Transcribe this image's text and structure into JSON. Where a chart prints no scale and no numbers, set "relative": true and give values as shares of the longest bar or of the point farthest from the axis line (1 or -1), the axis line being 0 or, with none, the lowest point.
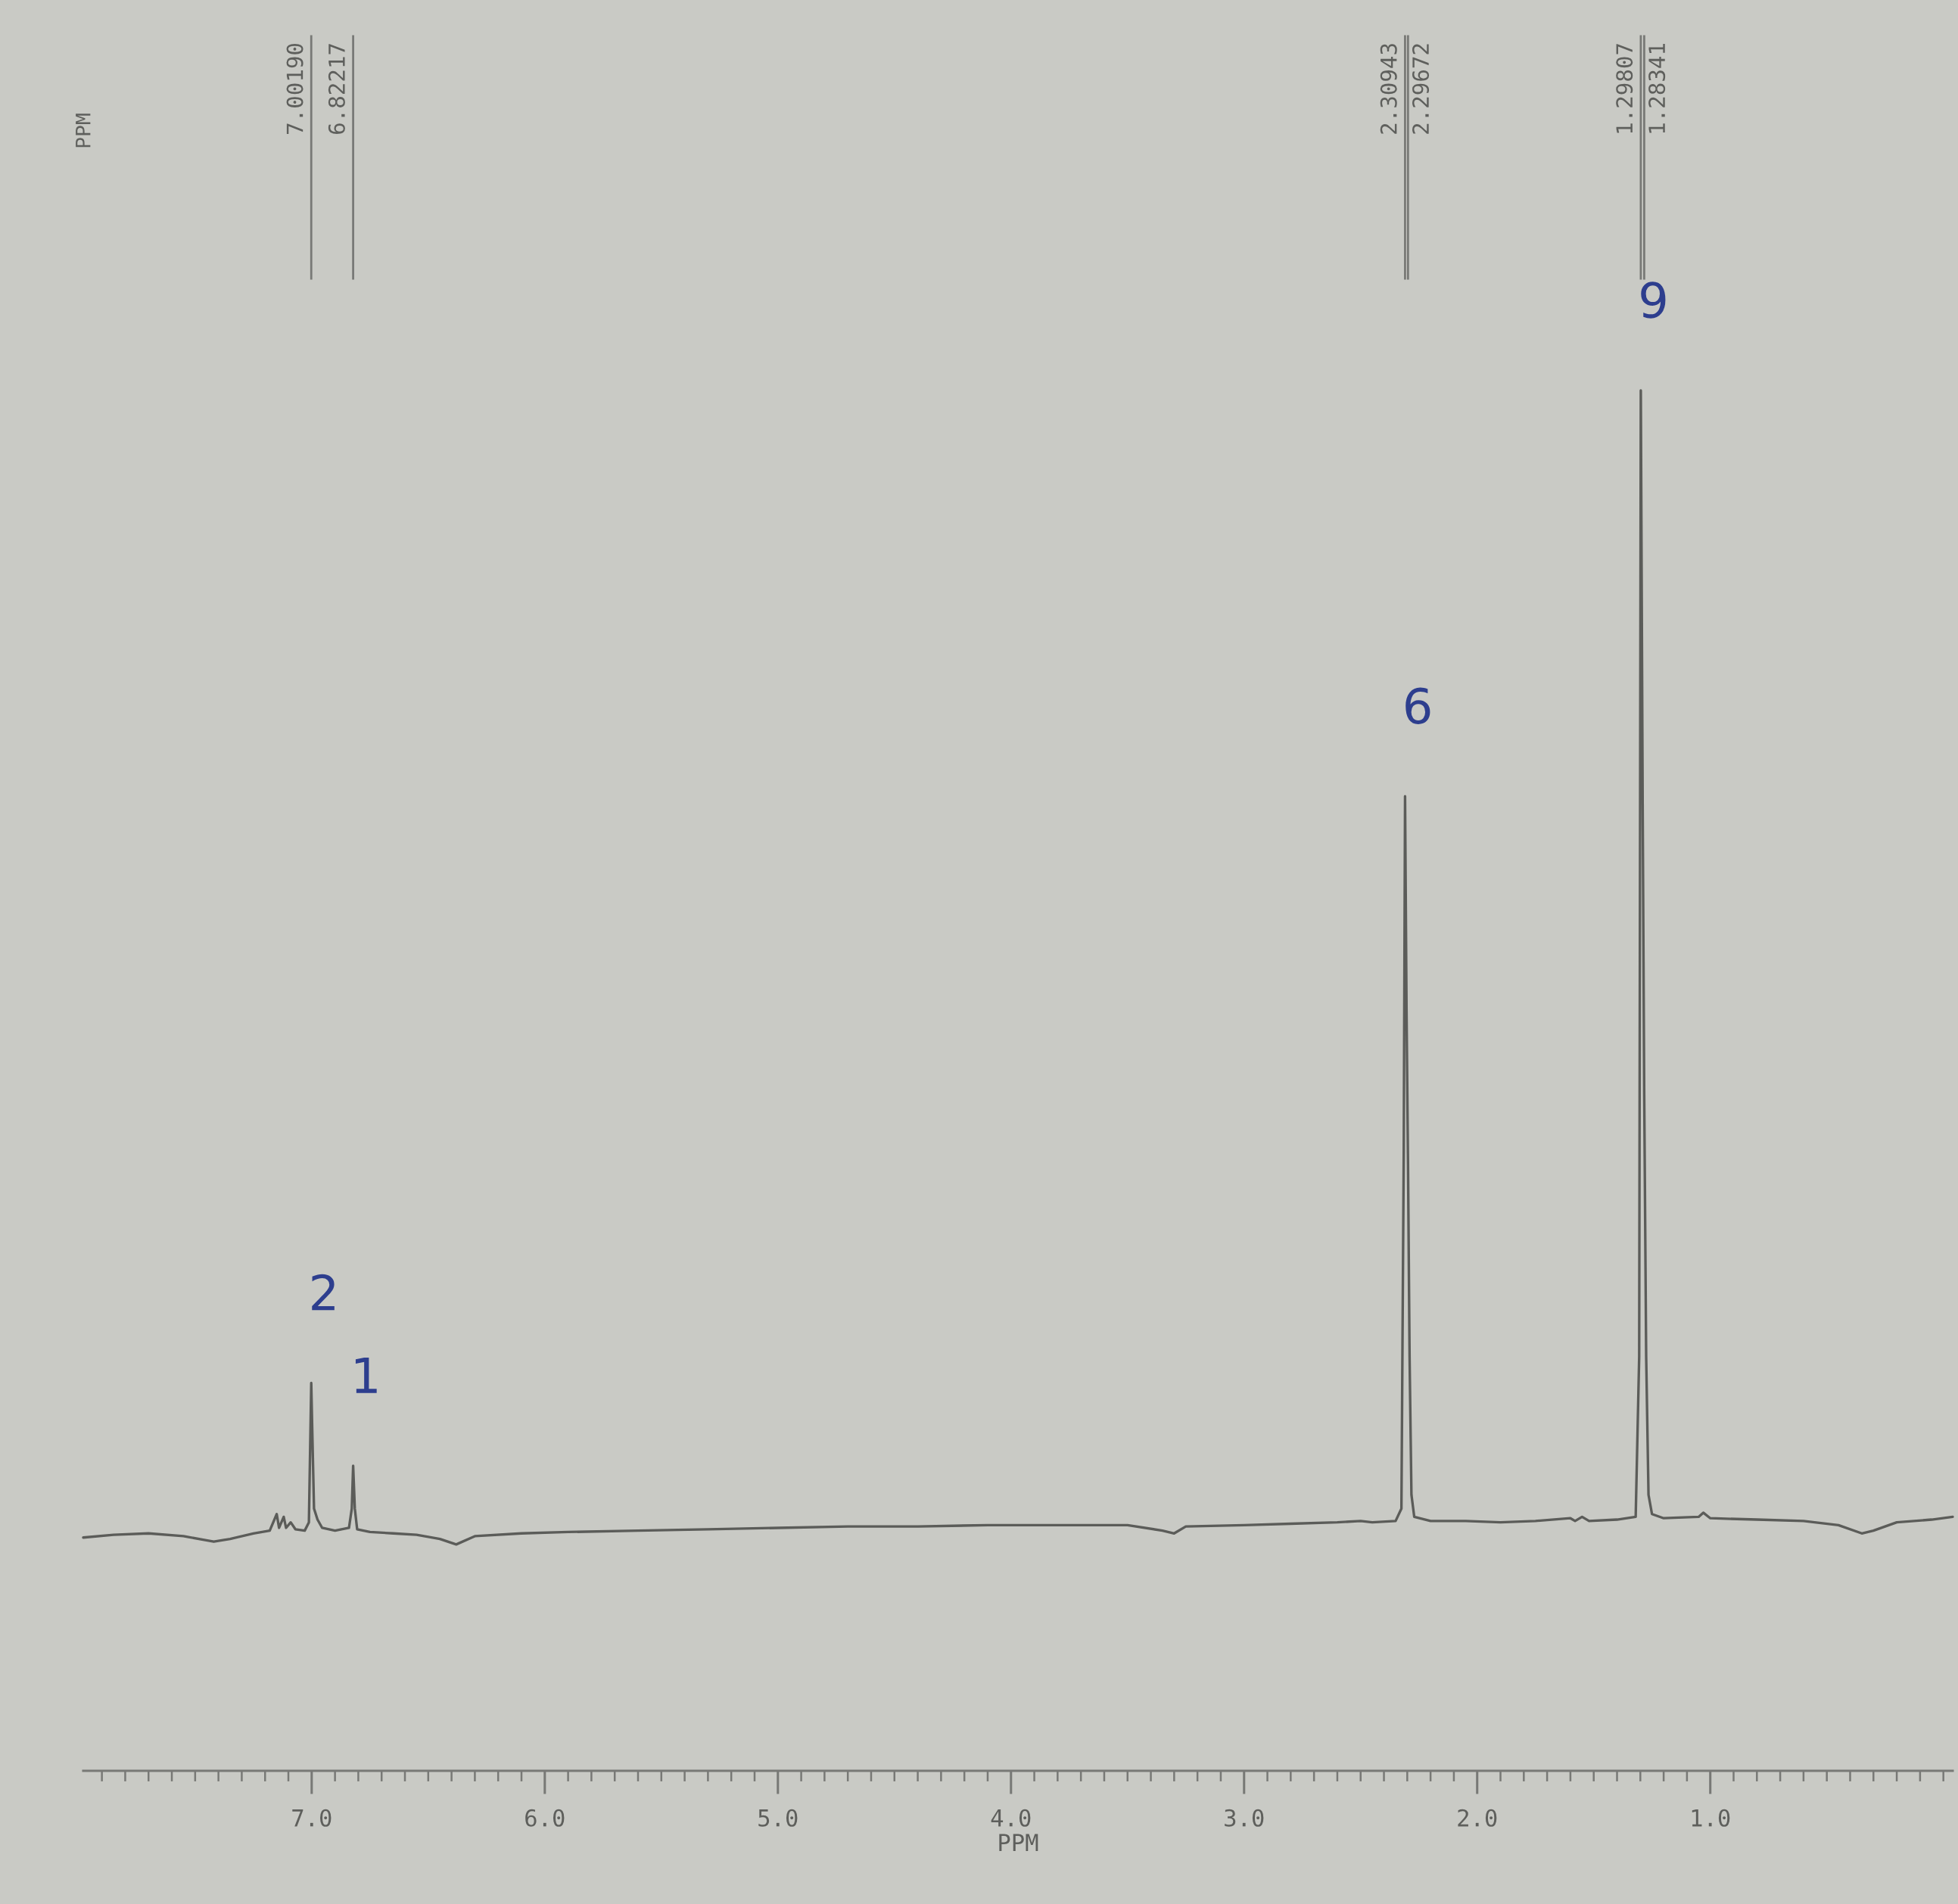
{
  "chart_data": {
    "type": "line",
    "relative": true,
    "xlabel": "PPM",
    "x": [
      7.98,
      7.85,
      7.7,
      7.55,
      7.42,
      7.35,
      7.25,
      7.18,
      7.15,
      7.14,
      7.12,
      7.11,
      7.09,
      7.07,
      7.03,
      7.012,
      7.006,
      7.0019,
      6.998,
      6.99,
      6.975,
      6.955,
      6.9,
      6.84,
      6.828,
      6.82217,
      6.815,
      6.805,
      6.75,
      6.65,
      6.55,
      6.45,
      6.38,
      6.3,
      6.1,
      5.9,
      5.6,
      5.3,
      5.0,
      4.7,
      4.4,
      4.1,
      3.8,
      3.5,
      3.35,
      3.3,
      3.25,
      3.0,
      2.8,
      2.6,
      2.5,
      2.45,
      2.35,
      2.325,
      2.315,
      2.30943,
      2.303,
      2.29672,
      2.29,
      2.282,
      2.27,
      2.2,
      2.05,
      1.9,
      1.75,
      1.6,
      1.58,
      1.55,
      1.52,
      1.4,
      1.32,
      1.305,
      1.29807,
      1.29,
      1.28341,
      1.275,
      1.265,
      1.25,
      1.2,
      1.05,
      1.03,
      1.0,
      0.8,
      0.6,
      0.45,
      0.35,
      0.3,
      0.2,
      0.05,
      -0.04
    ],
    "series": [
      {
        "color": "#5b5c59",
        "values": [
          0.169,
          0.171,
          0.172,
          0.17,
          0.166,
          0.168,
          0.172,
          0.174,
          0.186,
          0.176,
          0.184,
          0.176,
          0.18,
          0.175,
          0.174,
          0.18,
          0.24,
          0.281,
          0.25,
          0.19,
          0.182,
          0.176,
          0.174,
          0.176,
          0.19,
          0.221,
          0.19,
          0.175,
          0.173,
          0.172,
          0.171,
          0.168,
          0.164,
          0.17,
          0.172,
          0.173,
          0.174,
          0.175,
          0.176,
          0.177,
          0.177,
          0.178,
          0.178,
          0.178,
          0.174,
          0.172,
          0.177,
          0.178,
          0.179,
          0.18,
          0.181,
          0.18,
          0.181,
          0.19,
          0.45,
          0.706,
          0.55,
          0.44,
          0.3,
          0.2,
          0.184,
          0.181,
          0.181,
          0.18,
          0.181,
          0.183,
          0.181,
          0.184,
          0.181,
          0.182,
          0.184,
          0.3,
          1.0,
          0.7,
          0.49,
          0.3,
          0.2,
          0.186,
          0.183,
          0.184,
          0.187,
          0.183,
          0.182,
          0.181,
          0.178,
          0.172,
          0.174,
          0.18,
          0.182,
          0.184
        ]
      }
    ],
    "xlim": [
      7.98,
      -0.04
    ],
    "xticks": [
      {
        "value": 7.9,
        "label": null
      },
      {
        "value": 7.8,
        "label": null
      },
      {
        "value": 7.7,
        "label": null
      },
      {
        "value": 7.6,
        "label": null
      },
      {
        "value": 7.5,
        "label": null
      },
      {
        "value": 7.4,
        "label": null
      },
      {
        "value": 7.3,
        "label": null
      },
      {
        "value": 7.2,
        "label": null
      },
      {
        "value": 7.1,
        "label": null
      },
      {
        "value": 7,
        "label": "7.0"
      },
      {
        "value": 6.9,
        "label": null
      },
      {
        "value": 6.8,
        "label": null
      },
      {
        "value": 6.7,
        "label": null
      },
      {
        "value": 6.6,
        "label": null
      },
      {
        "value": 6.5,
        "label": null
      },
      {
        "value": 6.4,
        "label": null
      },
      {
        "value": 6.3,
        "label": null
      },
      {
        "value": 6.2,
        "label": null
      },
      {
        "value": 6.1,
        "label": null
      },
      {
        "value": 6,
        "label": "6.0"
      },
      {
        "value": 5.9,
        "label": null
      },
      {
        "value": 5.8,
        "label": null
      },
      {
        "value": 5.7,
        "label": null
      },
      {
        "value": 5.6,
        "label": null
      },
      {
        "value": 5.5,
        "label": null
      },
      {
        "value": 5.4,
        "label": null
      },
      {
        "value": 5.3,
        "label": null
      },
      {
        "value": 5.2,
        "label": null
      },
      {
        "value": 5.1,
        "label": null
      },
      {
        "value": 5,
        "label": "5.0"
      },
      {
        "value": 4.9,
        "label": null
      },
      {
        "value": 4.8,
        "label": null
      },
      {
        "value": 4.7,
        "label": null
      },
      {
        "value": 4.6,
        "label": null
      },
      {
        "value": 4.5,
        "label": null
      },
      {
        "value": 4.4,
        "label": null
      },
      {
        "value": 4.3,
        "label": null
      },
      {
        "value": 4.2,
        "label": null
      },
      {
        "value": 4.1,
        "label": null
      },
      {
        "value": 4,
        "label": "4.0"
      },
      {
        "value": 3.9,
        "label": null
      },
      {
        "value": 3.8,
        "label": null
      },
      {
        "value": 3.7,
        "label": null
      },
      {
        "value": 3.6,
        "label": null
      },
      {
        "value": 3.5,
        "label": null
      },
      {
        "value": 3.4,
        "label": null
      },
      {
        "value": 3.3,
        "label": null
      },
      {
        "value": 3.2,
        "label": null
      },
      {
        "value": 3.1,
        "label": null
      },
      {
        "value": 3,
        "label": "3.0"
      },
      {
        "value": 2.9,
        "label": null
      },
      {
        "value": 2.8,
        "label": null
      },
      {
        "value": 2.7,
        "label": null
      },
      {
        "value": 2.6,
        "label": null
      },
      {
        "value": 2.5,
        "label": null
      },
      {
        "value": 2.4,
        "label": null
      },
      {
        "value": 2.3,
        "label": null
      },
      {
        "value": 2.2,
        "label": null
      },
      {
        "value": 2.1,
        "label": null
      },
      {
        "value": 2,
        "label": "2.0"
      },
      {
        "value": 1.9,
        "label": null
      },
      {
        "value": 1.8,
        "label": null
      },
      {
        "value": 1.7,
        "label": null
      },
      {
        "value": 1.6,
        "label": null
      },
      {
        "value": 1.5,
        "label": null
      },
      {
        "value": 1.4,
        "label": null
      },
      {
        "value": 1.3,
        "label": null
      },
      {
        "value": 1.2,
        "label": null
      },
      {
        "value": 1.1,
        "label": null
      },
      {
        "value": 1,
        "label": "1.0"
      },
      {
        "value": 0.9,
        "label": null
      },
      {
        "value": 0.8,
        "label": null
      },
      {
        "value": 0.7,
        "label": null
      },
      {
        "value": 0.6,
        "label": null
      },
      {
        "value": 0.5,
        "label": null
      },
      {
        "value": 0.4,
        "label": null
      },
      {
        "value": 0.3,
        "label": null
      },
      {
        "value": 0.2,
        "label": null
      },
      {
        "value": 0.1,
        "label": null
      },
      {
        "value": 0.0,
        "label": null
      }
    ],
    "ref_lines": [
      {
        "axis": "x",
        "value": 7.0019,
        "label": "7.00190"
      },
      {
        "axis": "x",
        "value": 6.82217,
        "label": "6.82217"
      },
      {
        "axis": "x",
        "value": 2.30943,
        "label": "2.30943"
      },
      {
        "axis": "x",
        "value": 2.29672,
        "label": "2.29672"
      },
      {
        "axis": "x",
        "value": 1.29807,
        "label": "1.29807"
      },
      {
        "axis": "x",
        "value": 1.28341,
        "label": "1.28341"
      }
    ],
    "annotations": [
      "PPM",
      {
        "text": "2",
        "x": 7.0019,
        "y": 0.281
      },
      {
        "text": "1",
        "x": 6.82217,
        "y": 0.221
      },
      {
        "text": "6",
        "x": 2.30943,
        "y": 0.706
      },
      {
        "text": "9",
        "x": 1.29807,
        "y": 1.0
      }
    ]
  }
}
